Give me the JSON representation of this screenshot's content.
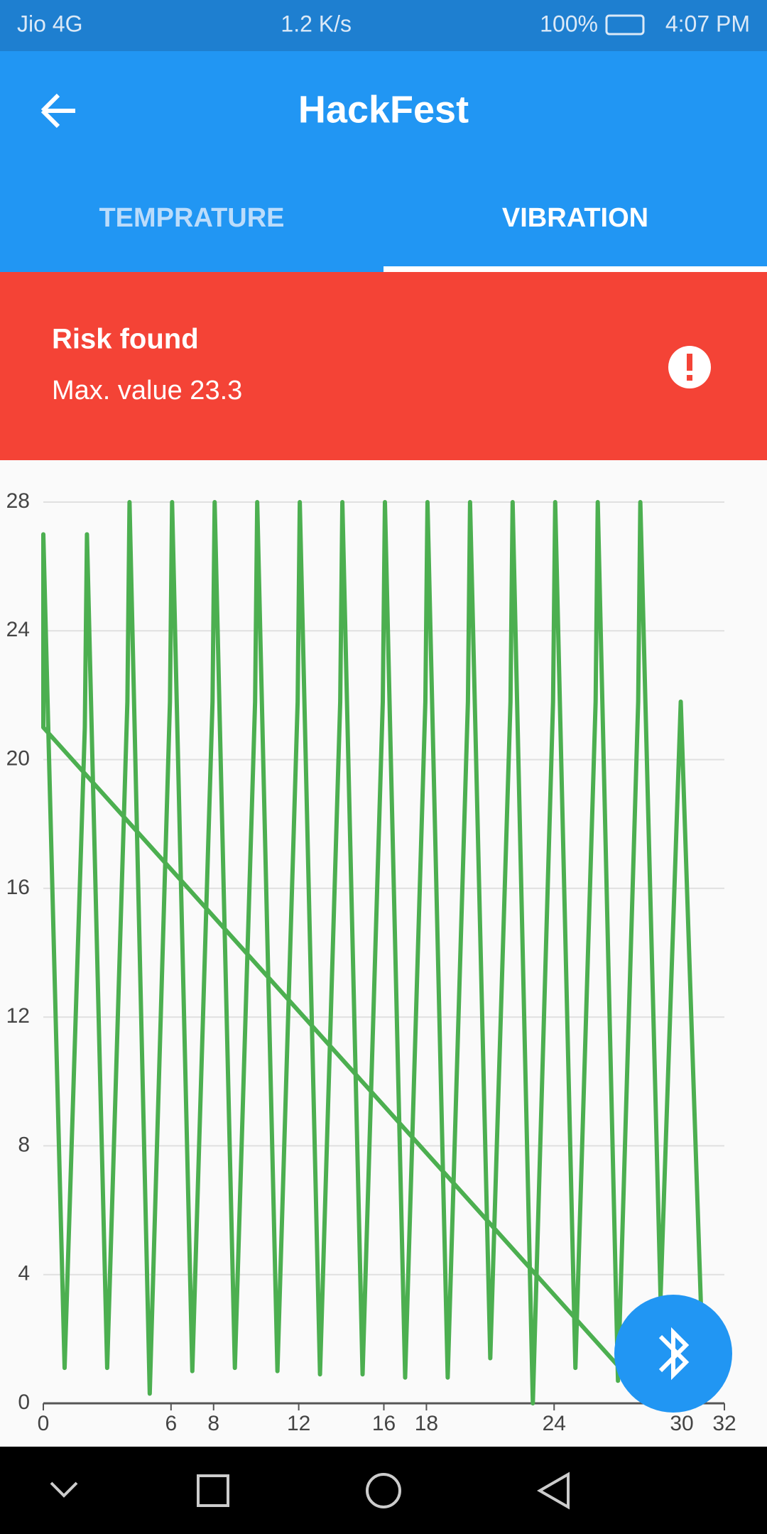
{
  "status_bar": {
    "carrier": "Jio 4G",
    "speed": "1.2 K/s",
    "battery": "100%",
    "time": "4:07 PM"
  },
  "app_bar": {
    "title": "HackFest"
  },
  "tabs": [
    "TEMPRATURE",
    "VIBRATION"
  ],
  "alert": {
    "title": "Risk found",
    "message": "Max. value 23.3"
  },
  "chart_data": {
    "type": "line",
    "x": [
      27.5,
      0,
      0,
      1,
      1.95,
      2.05,
      3,
      3.95,
      4.05,
      5,
      5.95,
      6.05,
      7,
      7.95,
      8.05,
      9,
      9.95,
      10.05,
      11,
      11.95,
      12.05,
      13,
      13.95,
      14.05,
      15,
      15.95,
      16.05,
      17,
      17.95,
      18.05,
      19,
      19.95,
      20.05,
      21,
      21.95,
      22.05,
      23,
      23.95,
      24.05,
      25,
      25.95,
      26.05,
      27,
      27.95,
      28.05,
      29,
      29.95,
      30.9
    ],
    "series": [
      {
        "color": "#4caf50",
        "values": [
          0.8,
          21,
          27,
          1.1,
          21,
          27,
          1.1,
          21.8,
          28,
          0.3,
          21.8,
          28,
          1,
          21.8,
          28,
          1.1,
          21.8,
          28,
          1,
          21.8,
          28,
          0.9,
          21.8,
          28,
          0.9,
          21.8,
          28,
          0.8,
          21.8,
          28,
          0.8,
          21.8,
          28,
          1.4,
          21.8,
          28,
          0,
          21.8,
          28,
          1.1,
          21.8,
          28,
          0.7,
          21.8,
          28,
          3.3,
          21.8,
          3
        ]
      }
    ],
    "xlim": [
      0,
      32
    ],
    "xticks": [
      0,
      6,
      8,
      12,
      16,
      18,
      24,
      30,
      32
    ],
    "ylim": [
      0,
      28
    ],
    "yticks": [
      0,
      4,
      8,
      12,
      16,
      20,
      24,
      28
    ],
    "grid": true
  }
}
